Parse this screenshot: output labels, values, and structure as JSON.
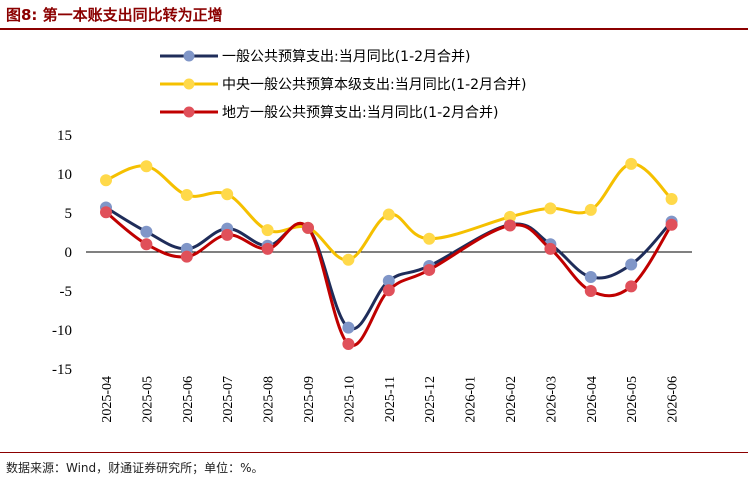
{
  "figure": {
    "title": "图8: 第一本账支出同比转为正增",
    "source": "数据来源：Wind，财通证券研究所；单位：%。"
  },
  "chart_data": {
    "type": "line",
    "title": "图8: 第一本账支出同比转为正增",
    "xlabel": "",
    "ylabel": "",
    "ylim": [
      -15,
      15
    ],
    "yticks": [
      15,
      10,
      5,
      0,
      -5,
      -10,
      -15
    ],
    "grid": false,
    "legend_position": "top-left",
    "categories": [
      "2025-04",
      "2025-05",
      "2025-06",
      "2025-07",
      "2025-08",
      "2025-09",
      "2025-10",
      "2025-11",
      "2025-12",
      "2026-01",
      "2026-02",
      "2026-03",
      "2026-04",
      "2026-05",
      "2026-06"
    ],
    "series": [
      {
        "name": "一般公共预算支出:当月同比(1-2月合并)",
        "color": "#1f2d5a",
        "marker_color": "#8096c8",
        "values": [
          5.7,
          2.6,
          0.4,
          3.0,
          0.8,
          3.1,
          -9.7,
          -3.7,
          -1.8,
          null,
          3.5,
          1.0,
          -3.2,
          -1.6,
          3.9
        ]
      },
      {
        "name": "中央一般公共预算本级支出:当月同比(1-2月合并)",
        "color": "#f5c000",
        "marker_color": "#ffd94a",
        "values": [
          9.2,
          11.0,
          7.3,
          7.4,
          2.8,
          3.1,
          -1.0,
          4.8,
          1.7,
          null,
          4.5,
          5.6,
          5.4,
          11.3,
          6.8
        ]
      },
      {
        "name": "地方一般公共预算支出:当月同比(1-2月合并)",
        "color": "#c00000",
        "marker_color": "#e0505a",
        "values": [
          5.1,
          1.0,
          -0.6,
          2.2,
          0.4,
          3.1,
          -11.8,
          -4.9,
          -2.3,
          null,
          3.4,
          0.4,
          -5.0,
          -4.4,
          3.5
        ]
      }
    ]
  }
}
